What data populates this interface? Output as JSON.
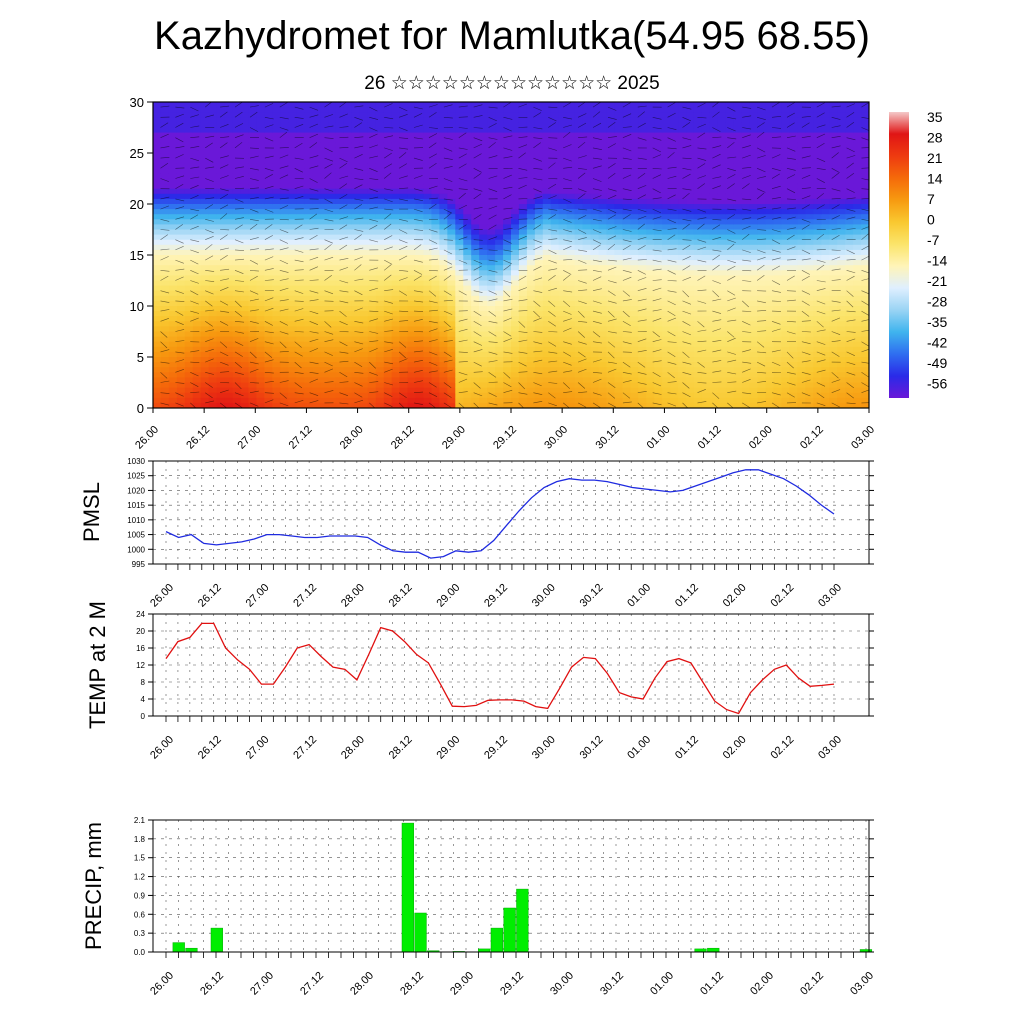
{
  "header": {
    "title": "Kazhydromet for Mamlutka(54.95 68.55)",
    "subtitle": "26 ☆☆☆☆☆☆☆☆☆☆☆☆☆ 2025"
  },
  "time_labels": [
    "26.00",
    "26.12",
    "27.00",
    "27.12",
    "28.00",
    "28.12",
    "29.00",
    "29.12",
    "30.00",
    "30.12",
    "01.00",
    "01.12",
    "02.00",
    "02.12",
    "03.00"
  ],
  "colors": {
    "pmsl_line": "#1f2be0",
    "temp_line": "#e01010",
    "precip_bar": "#00ee00",
    "grid": "#555555"
  },
  "chart_data": [
    {
      "type": "heatmap",
      "description_keys": "temperature cross-section with wind barbs",
      "ylabel": "",
      "ylim": [
        0,
        30
      ],
      "yticks": [
        "0",
        "5",
        "10",
        "15",
        "20",
        "25",
        "30"
      ],
      "colorbar": {
        "labels": [
          "35",
          "28",
          "21",
          "14",
          "7",
          "0",
          "-7",
          "-14",
          "-21",
          "-28",
          "-35",
          "-42",
          "-49",
          "-56"
        ],
        "colors": [
          "#f4c8c8",
          "#e01515",
          "#ee3b10",
          "#f56a0a",
          "#f79a10",
          "#f9c830",
          "#fbe46a",
          "#fff4b8",
          "#dfefff",
          "#9ad4f4",
          "#3fb4ee",
          "#2f6ef0",
          "#2a2ae8",
          "#6a18d8"
        ]
      }
    },
    {
      "type": "line",
      "ylabel": "PMSL",
      "ylim": [
        995,
        1030
      ],
      "yticks": [
        "995",
        "1000",
        "1005",
        "1010",
        "1015",
        "1020",
        "1025",
        "1030"
      ],
      "series": [
        {
          "values": [
            1006,
            1004,
            1005,
            1002,
            1001.5,
            1002,
            1002.5,
            1003.5,
            1005,
            1005,
            1004.5,
            1004,
            1004,
            1004.5,
            1004.5,
            1004.5,
            1004,
            1001.5,
            999.5,
            999,
            999,
            997,
            997.5,
            999.5,
            999,
            999.5,
            1003,
            1008,
            1013,
            1017.5,
            1021,
            1023,
            1024,
            1023.5,
            1023.5,
            1023,
            1022,
            1021,
            1020.5,
            1020,
            1019.5,
            1020,
            1021.5,
            1023,
            1024.5,
            1026,
            1027,
            1027,
            1025.5,
            1024,
            1021.5,
            1018.5,
            1015,
            1012
          ]
        }
      ]
    },
    {
      "type": "line",
      "ylabel": "TEMP at 2 M",
      "ylim": [
        0,
        24
      ],
      "yticks": [
        "0",
        "4",
        "8",
        "12",
        "16",
        "20",
        "24"
      ],
      "series": [
        {
          "values": [
            13.5,
            17.5,
            18.5,
            21.8,
            21.8,
            16,
            13.2,
            11,
            7.5,
            7.5,
            11.5,
            16,
            16.8,
            14,
            11.5,
            11,
            8.5,
            14.5,
            20.8,
            20,
            17.5,
            14.5,
            12.5,
            7.5,
            2.3,
            2.2,
            2.5,
            3.7,
            3.8,
            3.8,
            3.5,
            2.2,
            1.8,
            6.5,
            11.5,
            13.8,
            13.5,
            10,
            5.5,
            4.5,
            4,
            9,
            12.8,
            13.5,
            12.5,
            8,
            3.5,
            1.5,
            0.6,
            5.5,
            8.5,
            11,
            12,
            9,
            7,
            7.2,
            7.5
          ]
        }
      ]
    },
    {
      "type": "bar",
      "ylabel": "PRECIP, mm",
      "ylim": [
        0,
        2.1
      ],
      "yticks": [
        "0.0",
        "0.3",
        "0.6",
        "0.9",
        "1.2",
        "1.5",
        "1.8",
        "2.1"
      ],
      "series": [
        {
          "values": [
            0,
            0.15,
            0.06,
            0,
            0.38,
            0,
            0,
            0,
            0,
            0,
            0,
            0,
            0,
            0,
            0,
            0,
            0,
            0,
            0,
            2.05,
            0.62,
            0.02,
            0,
            0.01,
            0,
            0.05,
            0.38,
            0.7,
            1.0,
            0,
            0,
            0,
            0,
            0,
            0,
            0,
            0,
            0,
            0,
            0,
            0,
            0,
            0.05,
            0.06,
            0,
            0,
            0,
            0,
            0,
            0,
            0,
            0,
            0,
            0,
            0,
            0.04
          ]
        }
      ]
    }
  ]
}
